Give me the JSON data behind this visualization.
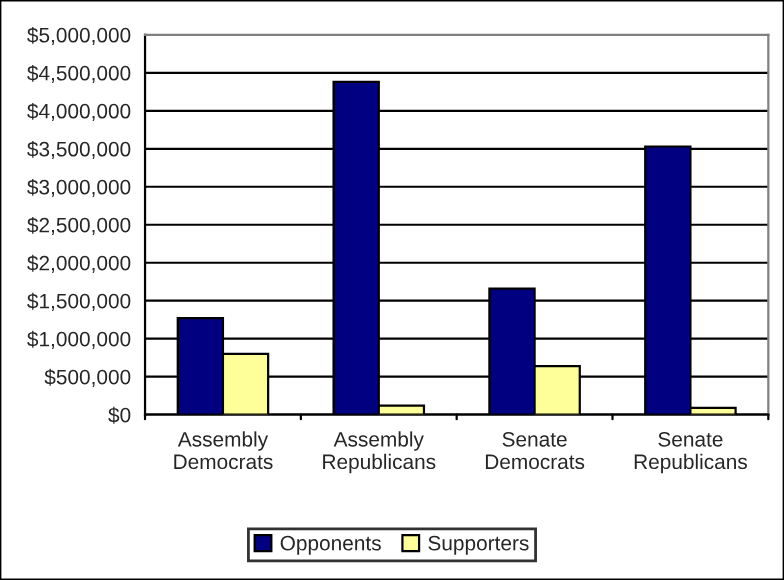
{
  "chart_data": {
    "type": "bar",
    "categories": [
      "Assembly\nDemocrats",
      "Assembly\nRepublicans",
      "Senate\nDemocrats",
      "Senate\nRepublicans"
    ],
    "series": [
      {
        "name": "Opponents",
        "color": "#000080",
        "values": [
          1270000,
          4380000,
          1660000,
          3530000
        ]
      },
      {
        "name": "Supporters",
        "color": "#ffff99",
        "values": [
          800000,
          120000,
          640000,
          90000
        ]
      }
    ],
    "ylim": [
      0,
      5000000
    ],
    "yticks": [
      {
        "value": 0,
        "label": "$0"
      },
      {
        "value": 500000,
        "label": "$500,000"
      },
      {
        "value": 1000000,
        "label": "$1,000,000"
      },
      {
        "value": 1500000,
        "label": "$1,500,000"
      },
      {
        "value": 2000000,
        "label": "$2,000,000"
      },
      {
        "value": 2500000,
        "label": "$2,500,000"
      },
      {
        "value": 3000000,
        "label": "$3,000,000"
      },
      {
        "value": 3500000,
        "label": "$3,500,000"
      },
      {
        "value": 4000000,
        "label": "$4,000,000"
      },
      {
        "value": 4500000,
        "label": "$4,500,000"
      },
      {
        "value": 5000000,
        "label": "$5,000,000"
      }
    ],
    "grid": "y",
    "legend": "bottom"
  }
}
